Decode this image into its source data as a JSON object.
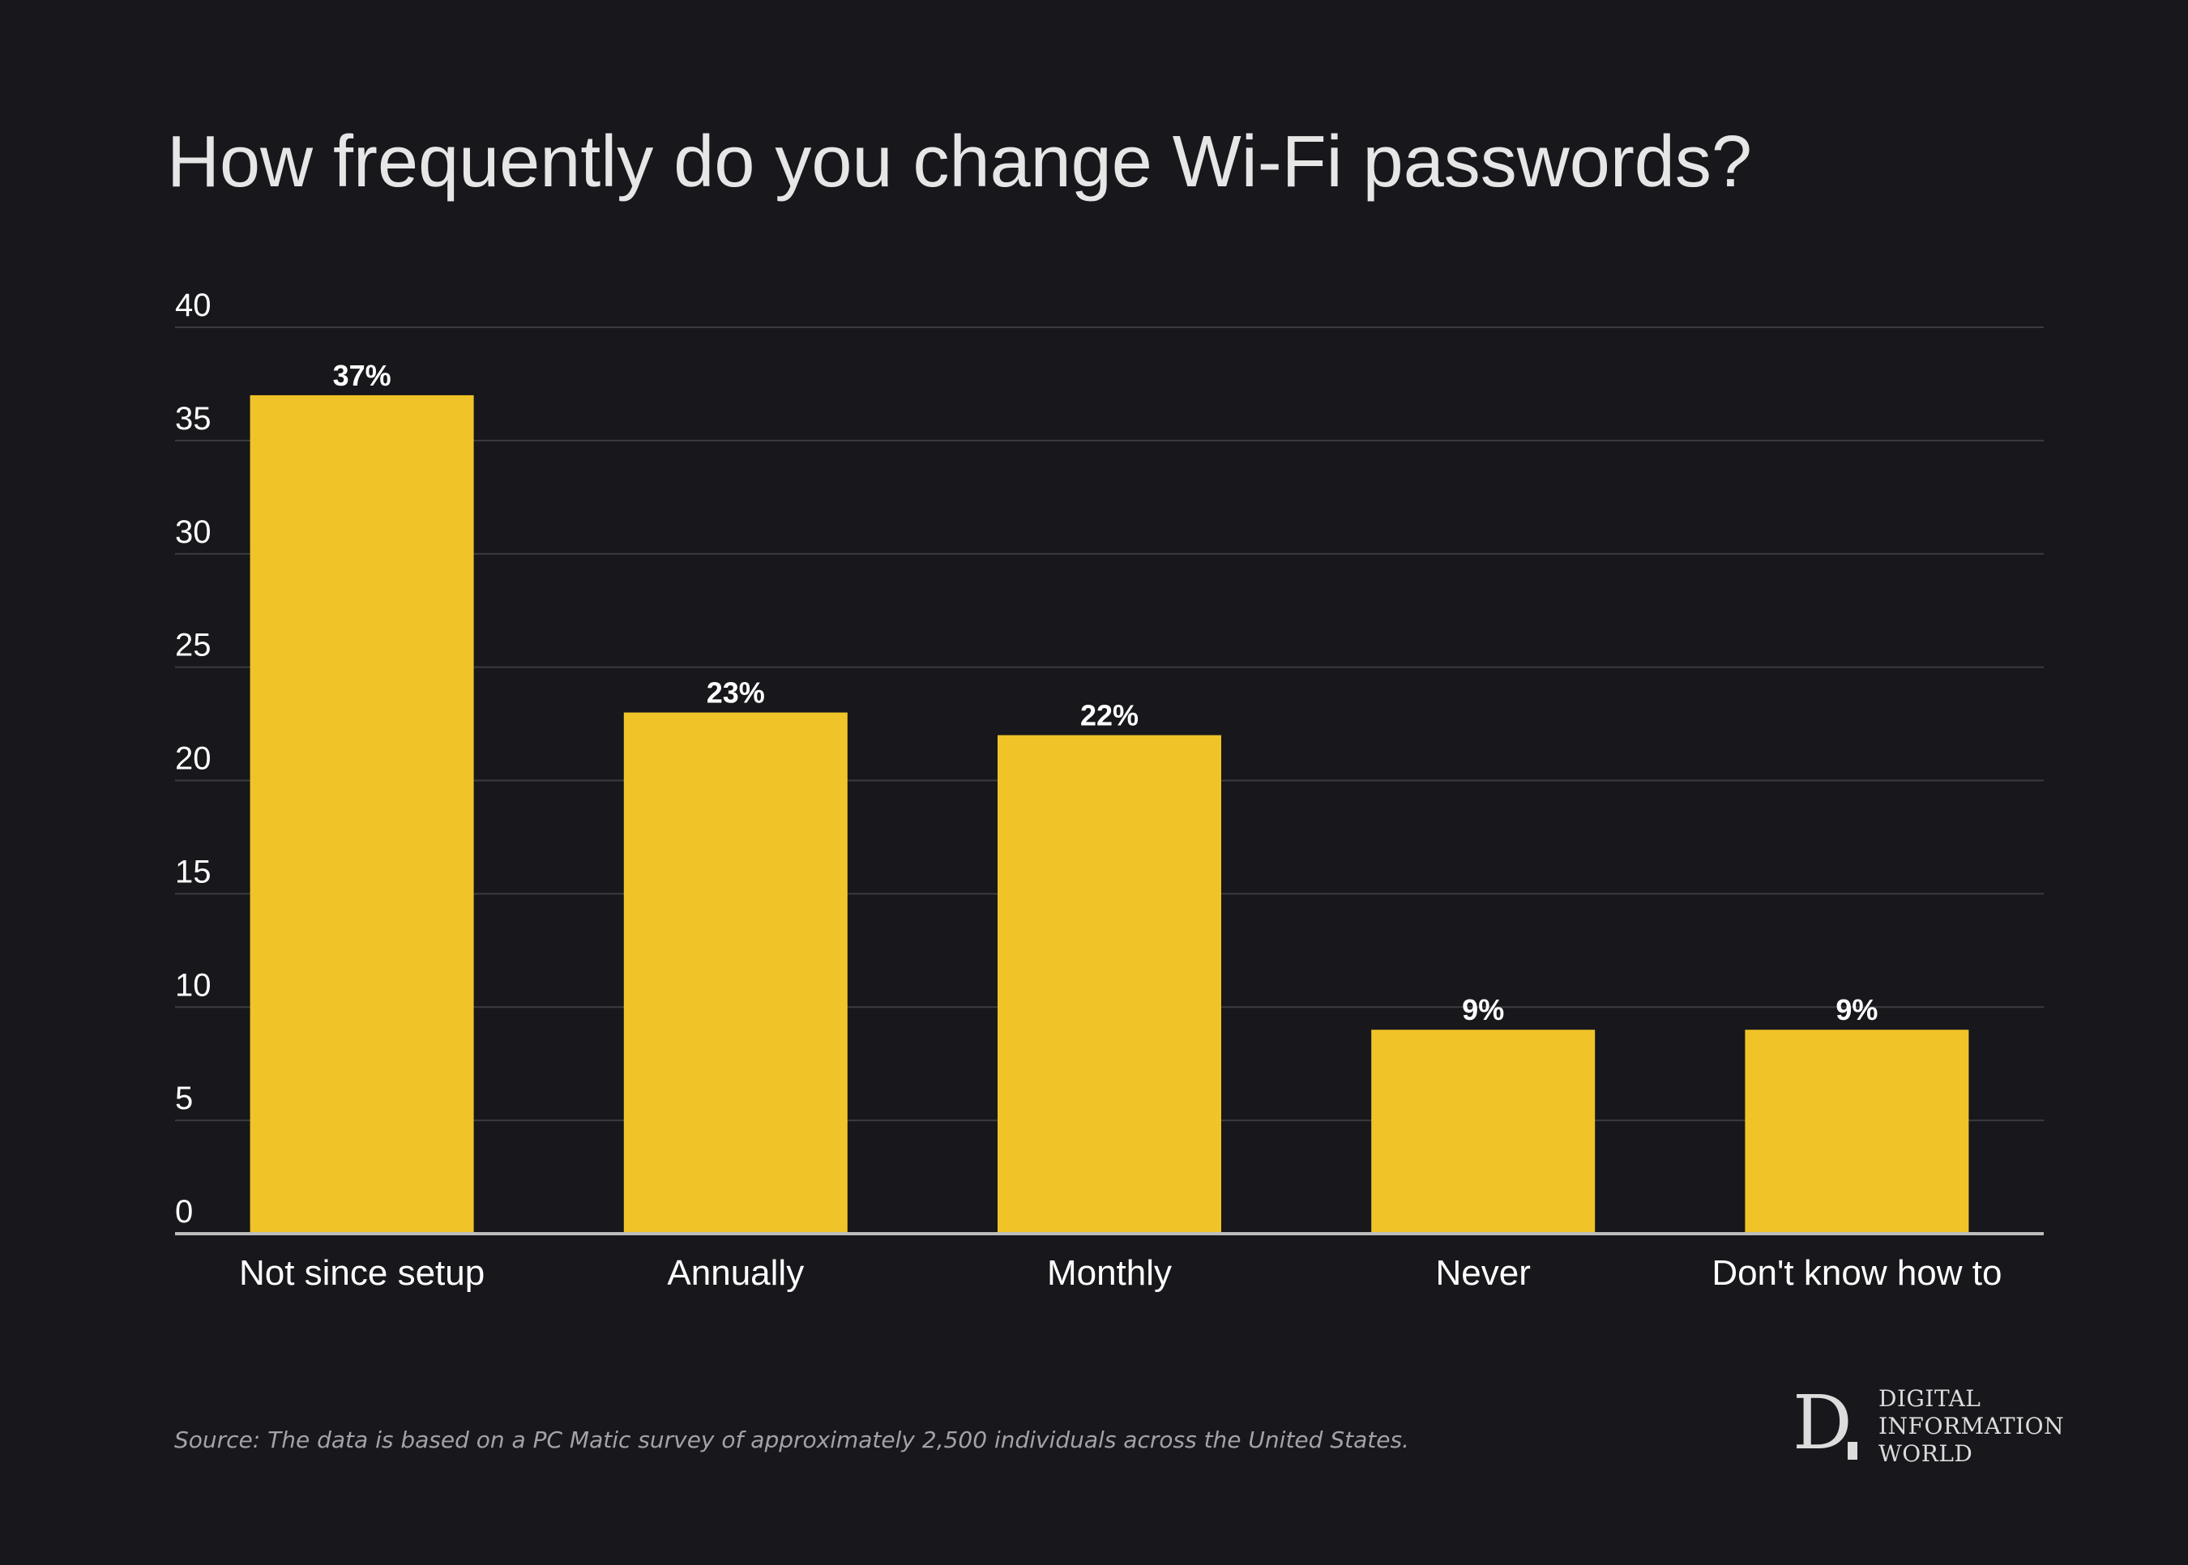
{
  "title": "How frequently do you change Wi-Fi passwords?",
  "source": "Source: The data is based on a PC Matic survey of approximately 2,500 individuals across the United States.",
  "logo": {
    "letter": "D",
    "lines": [
      "DIGITAL",
      "INFORMATION",
      "WORLD"
    ]
  },
  "colors": {
    "background": "#17171c",
    "bar": "#f0c428",
    "grid": "#3b3b40",
    "axis": "#bdbdbd",
    "text": "#ffffff"
  },
  "chart_data": {
    "type": "bar",
    "categories": [
      "Not since setup",
      "Annually",
      "Monthly",
      "Never",
      "Don't know how to"
    ],
    "values": [
      37,
      23,
      22,
      9,
      9
    ],
    "data_labels": [
      "37%",
      "23%",
      "22%",
      "9%",
      "9%"
    ],
    "ylim": [
      0,
      40
    ],
    "yticks": [
      0,
      5,
      10,
      15,
      20,
      25,
      30,
      35,
      40
    ],
    "grid": true,
    "legend": "none"
  }
}
